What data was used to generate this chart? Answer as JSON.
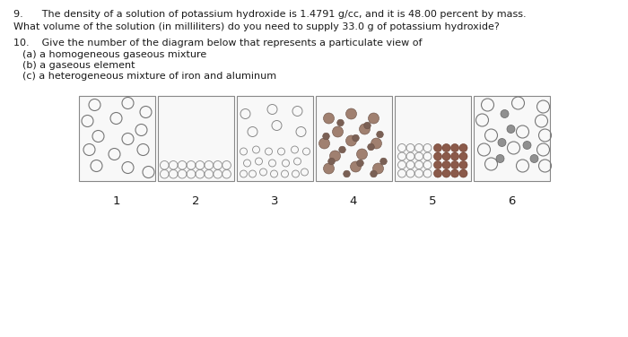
{
  "q9_line1": "9.      The density of a solution of potassium hydroxide is 1.4791 g/cc, and it is 48.00 percent by mass.",
  "q9_line2": "What volume of the solution (in milliliters) do you need to supply 33.0 g of potassium hydroxide?",
  "q10_line1": "10.    Give the number of the diagram below that represents a particulate view of",
  "q10_a": "              (a) a homogeneous gaseous mixture",
  "q10_b": "              (b) a gaseous element",
  "q10_c": "              (c) a heterogeneous mixture of iron and aluminum",
  "bg_color": "#ffffff",
  "box_labels": [
    "1",
    "2",
    "3",
    "4",
    "5",
    "6"
  ],
  "text_color": "#1a1a1a",
  "box_edge_color": "#888888",
  "box_face_color": "#f8f8f8",
  "circle_edge_open": "#777777",
  "circle_large_r": 6.5,
  "circle_small_r": 4.5,
  "circle_packed_r": 4.8,
  "brown_light": "#a08070",
  "brown_dark": "#7a6055",
  "red_brown": "#8b5a4a",
  "gray_small": "#888888"
}
